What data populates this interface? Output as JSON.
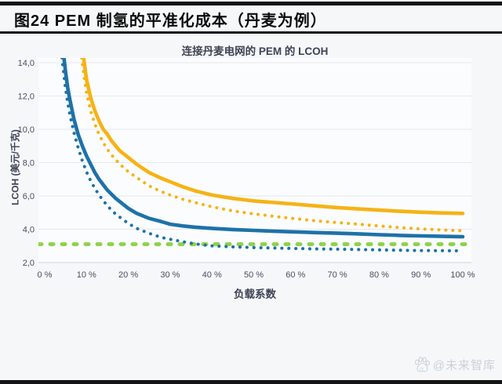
{
  "header": {
    "title": "图24 PEM 制氢的平准化成本（丹麦为例）"
  },
  "chart": {
    "title": "连接丹麦电网的 PEM 的 LCOH",
    "ylabel": "LCOH (美元/千克)",
    "xlabel": "负载系数",
    "y_ticks": [
      {
        "label": "14,0",
        "value": 14
      },
      {
        "label": "12,0",
        "value": 12
      },
      {
        "label": "10,0",
        "value": 10
      },
      {
        "label": "8,0",
        "value": 8
      },
      {
        "label": "6,0",
        "value": 6
      },
      {
        "label": "4,0",
        "value": 4
      },
      {
        "label": "2,0",
        "value": 2
      }
    ],
    "x_ticks": [
      {
        "label": "0 %",
        "value": 0
      },
      {
        "label": "10 %",
        "value": 10
      },
      {
        "label": "20 %",
        "value": 20
      },
      {
        "label": "30 %",
        "value": 30
      },
      {
        "label": "40 %",
        "value": 40
      },
      {
        "label": "50 %",
        "value": 50
      },
      {
        "label": "60 %",
        "value": 60
      },
      {
        "label": "70 %",
        "value": 70
      },
      {
        "label": "80 %",
        "value": 80
      },
      {
        "label": "90 %",
        "value": 90
      },
      {
        "label": "100 %",
        "value": 100
      }
    ]
  },
  "chart_data": {
    "type": "line",
    "title": "连接丹麦电网的 PEM 的 LCOH",
    "xlabel": "负载系数",
    "ylabel": "LCOH (美元/千克)",
    "x_unit": "%",
    "y_unit": "美元/千克",
    "xlim": [
      0,
      100
    ],
    "ylim": [
      2,
      14
    ],
    "grid": "horizontal",
    "legend": "none",
    "series": [
      {
        "name": "green-dashed-reference",
        "style": "dashed",
        "color": "#8ed24b",
        "extend_to_plot_edges": true,
        "points": [
          [
            0,
            3.1
          ],
          [
            100,
            3.1
          ]
        ]
      },
      {
        "name": "yellow-dotted",
        "style": "dotted",
        "color": "#f5b316",
        "points": [
          [
            8.8,
            14.3
          ],
          [
            10,
            12.2
          ],
          [
            11,
            11.1
          ],
          [
            12,
            10.3
          ],
          [
            13,
            9.7
          ],
          [
            14,
            9.2
          ],
          [
            15,
            8.8
          ],
          [
            16,
            8.45
          ],
          [
            18,
            7.9
          ],
          [
            20,
            7.45
          ],
          [
            22,
            7.1
          ],
          [
            25,
            6.6
          ],
          [
            28,
            6.25
          ],
          [
            30,
            6.05
          ],
          [
            33,
            5.8
          ],
          [
            36,
            5.6
          ],
          [
            40,
            5.35
          ],
          [
            45,
            5.1
          ],
          [
            50,
            4.92
          ],
          [
            55,
            4.77
          ],
          [
            60,
            4.63
          ],
          [
            65,
            4.5
          ],
          [
            70,
            4.4
          ],
          [
            75,
            4.3
          ],
          [
            80,
            4.2
          ],
          [
            85,
            4.1
          ],
          [
            90,
            4.02
          ],
          [
            95,
            3.96
          ],
          [
            100,
            3.9
          ]
        ]
      },
      {
        "name": "yellow-solid",
        "style": "solid",
        "color": "#f5b316",
        "points": [
          [
            9.3,
            14.3
          ],
          [
            10,
            13.0
          ],
          [
            11,
            11.9
          ],
          [
            12,
            11.1
          ],
          [
            13,
            10.5
          ],
          [
            14,
            10.0
          ],
          [
            15,
            9.7
          ],
          [
            16,
            9.3
          ],
          [
            18,
            8.7
          ],
          [
            20,
            8.3
          ],
          [
            22,
            7.9
          ],
          [
            25,
            7.4
          ],
          [
            28,
            7.05
          ],
          [
            30,
            6.85
          ],
          [
            33,
            6.55
          ],
          [
            36,
            6.3
          ],
          [
            40,
            6.05
          ],
          [
            45,
            5.85
          ],
          [
            50,
            5.7
          ],
          [
            55,
            5.6
          ],
          [
            60,
            5.5
          ],
          [
            65,
            5.4
          ],
          [
            70,
            5.3
          ],
          [
            75,
            5.22
          ],
          [
            80,
            5.15
          ],
          [
            85,
            5.08
          ],
          [
            90,
            5.02
          ],
          [
            95,
            4.98
          ],
          [
            100,
            4.95
          ]
        ]
      },
      {
        "name": "blue-dotted",
        "style": "dotted",
        "color": "#1d72a8",
        "points": [
          [
            4.1,
            14.3
          ],
          [
            5,
            12.4
          ],
          [
            5.5,
            11.6
          ],
          [
            6,
            10.9
          ],
          [
            7,
            9.8
          ],
          [
            8,
            8.9
          ],
          [
            9,
            8.1
          ],
          [
            10,
            7.45
          ],
          [
            11,
            6.9
          ],
          [
            12,
            6.45
          ],
          [
            13,
            6.05
          ],
          [
            15,
            5.4
          ],
          [
            17,
            4.9
          ],
          [
            20,
            4.35
          ],
          [
            22,
            4.05
          ],
          [
            25,
            3.75
          ],
          [
            28,
            3.5
          ],
          [
            30,
            3.4
          ],
          [
            33,
            3.25
          ],
          [
            36,
            3.12
          ],
          [
            40,
            3.0
          ],
          [
            45,
            2.94
          ],
          [
            50,
            2.9
          ],
          [
            55,
            2.87
          ],
          [
            60,
            2.84
          ],
          [
            65,
            2.82
          ],
          [
            70,
            2.8
          ],
          [
            75,
            2.78
          ],
          [
            80,
            2.76
          ],
          [
            85,
            2.74
          ],
          [
            90,
            2.72
          ],
          [
            95,
            2.71
          ],
          [
            100,
            2.7
          ]
        ]
      },
      {
        "name": "blue-solid",
        "style": "solid",
        "color": "#1d72a8",
        "points": [
          [
            4.6,
            14.3
          ],
          [
            5,
            13.4
          ],
          [
            5.5,
            12.5
          ],
          [
            6,
            11.8
          ],
          [
            7,
            10.6
          ],
          [
            8,
            9.7
          ],
          [
            9,
            9.0
          ],
          [
            10,
            8.4
          ],
          [
            11,
            7.9
          ],
          [
            12,
            7.4
          ],
          [
            13,
            7.0
          ],
          [
            15,
            6.35
          ],
          [
            17,
            5.85
          ],
          [
            20,
            5.25
          ],
          [
            22,
            4.95
          ],
          [
            25,
            4.65
          ],
          [
            28,
            4.45
          ],
          [
            30,
            4.3
          ],
          [
            33,
            4.2
          ],
          [
            36,
            4.12
          ],
          [
            40,
            4.05
          ],
          [
            45,
            3.98
          ],
          [
            50,
            3.93
          ],
          [
            55,
            3.88
          ],
          [
            60,
            3.84
          ],
          [
            65,
            3.8
          ],
          [
            70,
            3.76
          ],
          [
            75,
            3.72
          ],
          [
            80,
            3.67
          ],
          [
            85,
            3.63
          ],
          [
            90,
            3.6
          ],
          [
            95,
            3.57
          ],
          [
            100,
            3.55
          ]
        ]
      }
    ]
  },
  "watermark": {
    "text": "@未来智库",
    "paw_label": "du"
  },
  "colors": {
    "blue": "#1d72a8",
    "yellow": "#f5b316",
    "green": "#8ed24b",
    "gridline": "#e5e8ed",
    "baseline": "#d7dade",
    "axis_text": "#4a4f60",
    "title_text": "#3e4355",
    "rule": "#141414",
    "watermark": "#ccd0d7",
    "background": "#f5f7f9"
  }
}
